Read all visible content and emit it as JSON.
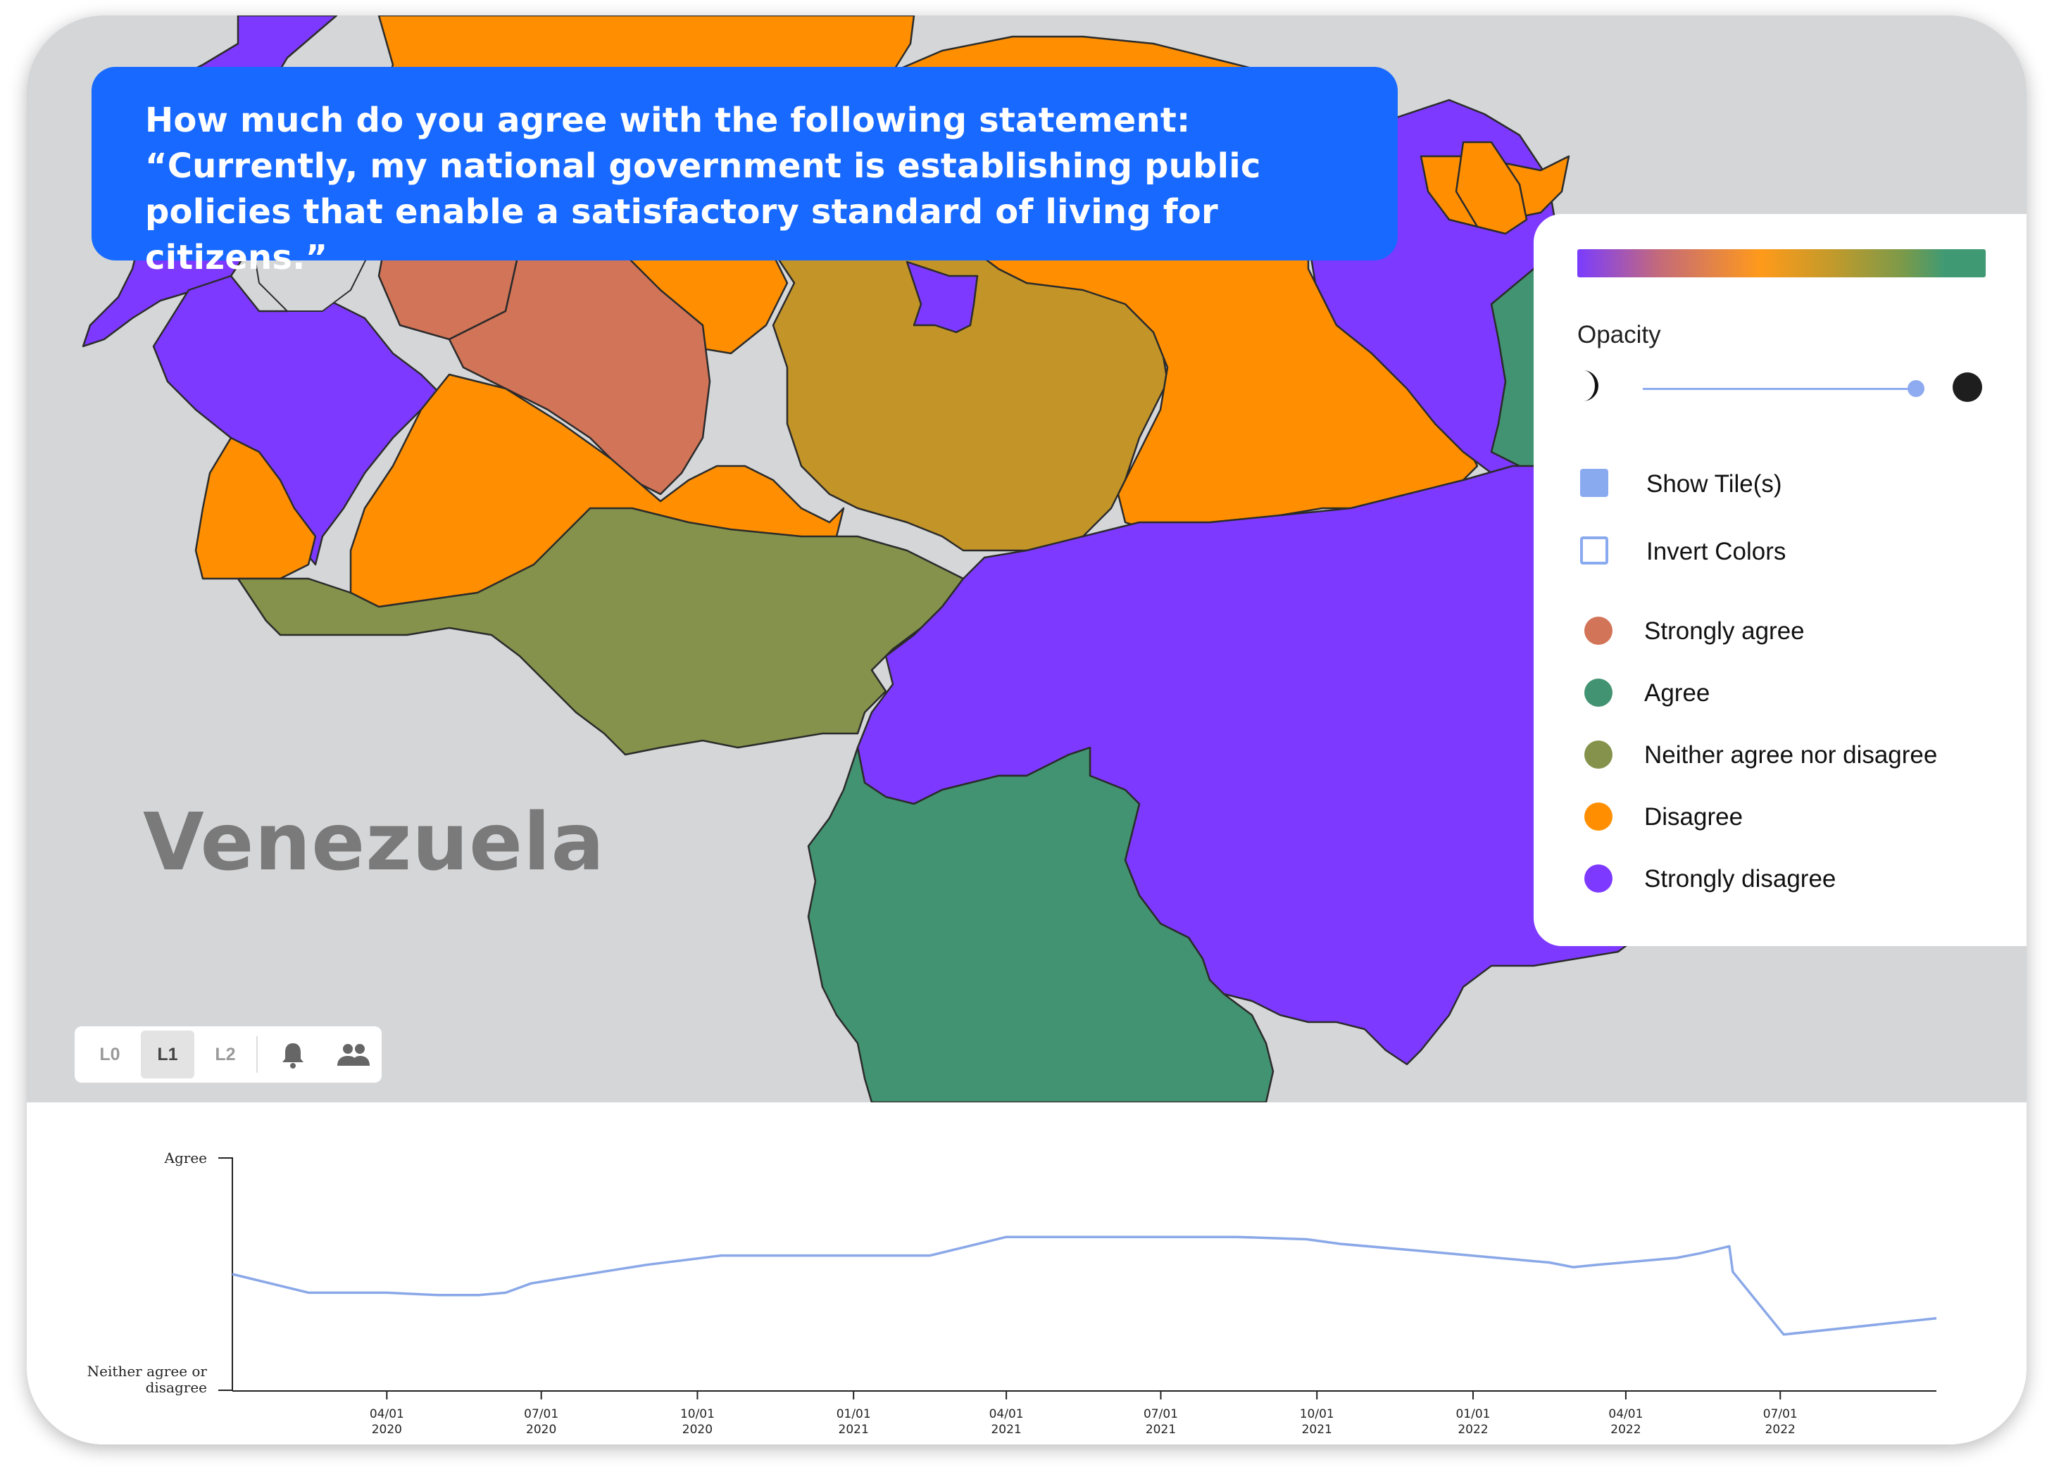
{
  "question": {
    "text": "How much do you agree with the following statement:\n“Currently, my national government is establishing public\npolicies that enable a satisfactory standard of living for citizens.”"
  },
  "map": {
    "country_label": "Venezuela",
    "background_color": "#d5d6d8",
    "region_colors": {
      "strongly_agree": "#d27458",
      "agree": "#429371",
      "neither": "#84924b",
      "disagree": "#ff8f00",
      "strongly_disagree": "#7d39ff",
      "mixed": "#c39428"
    }
  },
  "legend": {
    "gradient_colors": [
      "#7a3cff",
      "#c46a7a",
      "#ff9a1a",
      "#c49a2a",
      "#7a9a4a",
      "#3f9a74"
    ],
    "opacity_label": "Opacity",
    "opacity_value": 0.95,
    "toggles": [
      {
        "label": "Show Tile(s)",
        "checked": true
      },
      {
        "label": "Invert Colors",
        "checked": false
      }
    ],
    "items": [
      {
        "label": "Strongly agree",
        "color": "#d27458"
      },
      {
        "label": "Agree",
        "color": "#429371"
      },
      {
        "label": "Neither agree nor disagree",
        "color": "#84924b"
      },
      {
        "label": "Disagree",
        "color": "#ff8f00"
      },
      {
        "label": "Strongly disagree",
        "color": "#7d39ff"
      }
    ]
  },
  "levels": {
    "buttons": [
      "L0",
      "L1",
      "L2"
    ],
    "active": "L1",
    "icons": [
      "bell-icon",
      "people-icon"
    ]
  },
  "chart_data": {
    "type": "line",
    "ylabels": {
      "top": "Agree",
      "bottom_line1": "Neither agree or",
      "bottom_line2": "disagree"
    },
    "ylim": [
      3,
      4
    ],
    "xlim": [
      "2020-01-01",
      "2022-10-01"
    ],
    "line_color": "#8aa8e8",
    "xticks": [
      {
        "date": "2020-04-01",
        "line1": "04/01",
        "line2": "2020"
      },
      {
        "date": "2020-07-01",
        "line1": "07/01",
        "line2": "2020"
      },
      {
        "date": "2020-10-01",
        "line1": "10/01",
        "line2": "2020"
      },
      {
        "date": "2021-01-01",
        "line1": "01/01",
        "line2": "2021"
      },
      {
        "date": "2021-04-01",
        "line1": "04/01",
        "line2": "2021"
      },
      {
        "date": "2021-07-01",
        "line1": "07/01",
        "line2": "2021"
      },
      {
        "date": "2021-10-01",
        "line1": "10/01",
        "line2": "2021"
      },
      {
        "date": "2022-01-01",
        "line1": "01/01",
        "line2": "2022"
      },
      {
        "date": "2022-04-01",
        "line1": "04/01",
        "line2": "2022"
      },
      {
        "date": "2022-07-01",
        "line1": "07/01",
        "line2": "2022"
      }
    ],
    "series": [
      {
        "x": [
          "2020-01-01",
          "2020-02-15",
          "2020-03-15",
          "2020-04-01",
          "2020-05-01",
          "2020-05-25",
          "2020-06-10",
          "2020-06-25",
          "2020-07-20",
          "2020-09-01",
          "2020-10-15",
          "2020-11-15",
          "2021-01-01",
          "2021-02-15",
          "2021-04-01",
          "2021-05-15",
          "2021-07-01",
          "2021-08-15",
          "2021-09-25",
          "2021-10-15",
          "2021-12-01",
          "2022-01-15",
          "2022-02-15",
          "2022-03-01",
          "2022-03-15",
          "2022-05-01",
          "2022-05-15",
          "2022-06-01",
          "2022-06-03",
          "2022-07-03",
          "2022-10-01"
        ],
        "y": [
          3.5,
          3.42,
          3.42,
          3.42,
          3.41,
          3.41,
          3.42,
          3.46,
          3.49,
          3.54,
          3.58,
          3.58,
          3.58,
          3.58,
          3.66,
          3.66,
          3.66,
          3.66,
          3.65,
          3.63,
          3.6,
          3.57,
          3.55,
          3.53,
          3.54,
          3.57,
          3.59,
          3.62,
          3.51,
          3.24,
          3.31
        ]
      }
    ]
  }
}
